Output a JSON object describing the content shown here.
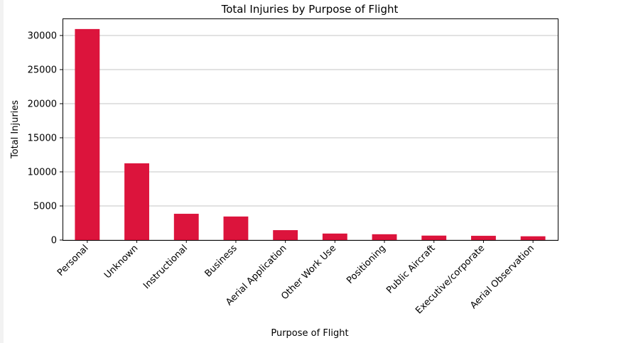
{
  "chart_data": {
    "type": "bar",
    "title": "Total Injuries by Purpose of Flight",
    "xlabel": "Purpose of Flight",
    "ylabel": "Total Injuries",
    "categories": [
      "Personal",
      "Unknown",
      "Instructional",
      "Business",
      "Aerial Application",
      "Other Work Use",
      "Positioning",
      "Public Aircraft",
      "Executive/corporate",
      "Aerial Observation"
    ],
    "values": [
      30950,
      11250,
      3850,
      3450,
      1450,
      950,
      850,
      650,
      620,
      550
    ],
    "ylim": [
      0,
      32500
    ],
    "yticks": [
      0,
      5000,
      10000,
      15000,
      20000,
      25000,
      30000
    ],
    "ytick_labels": [
      "0",
      "5000",
      "10000",
      "15000",
      "20000",
      "25000",
      "30000"
    ],
    "grid": "y",
    "bar_color": "#dc143c"
  }
}
